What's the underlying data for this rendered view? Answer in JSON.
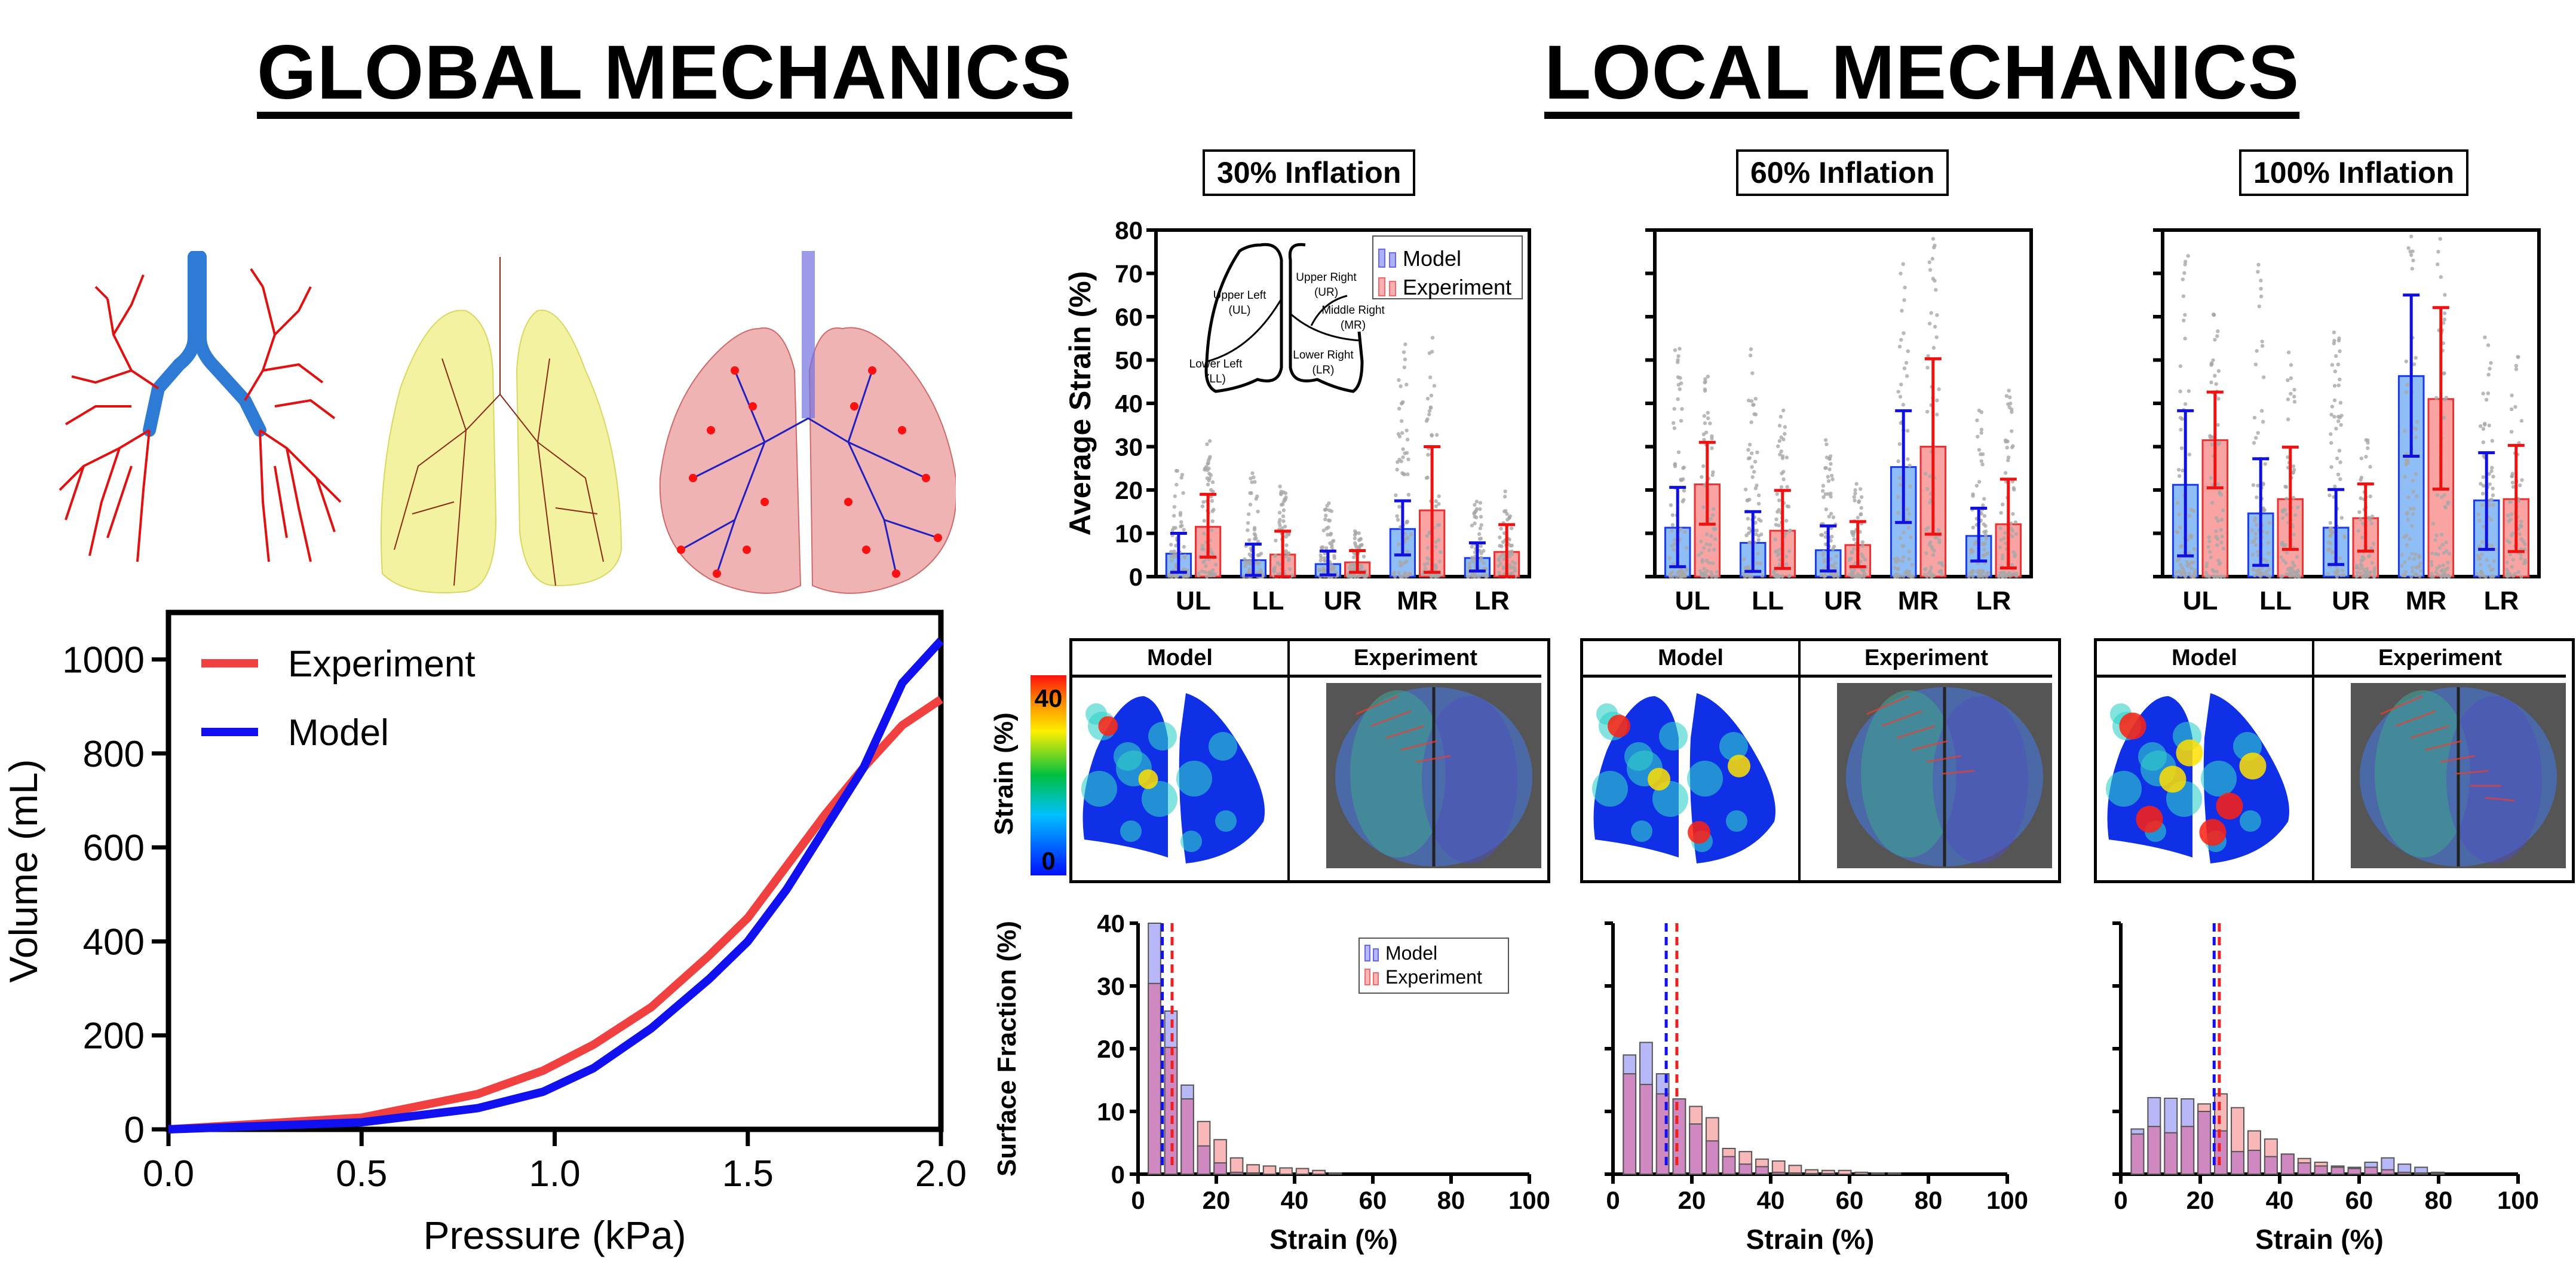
{
  "headers": {
    "global": "GLOBAL MECHANICS",
    "local": "LOCAL MECHANICS"
  },
  "lung_images": [
    {
      "name": "airway-tree-model",
      "description": "Blue trachea with red branching airway tree"
    },
    {
      "name": "yellow-lung-mesh",
      "description": "Translucent yellow lung lobes with brown airway tree"
    },
    {
      "name": "red-lung-mesh",
      "description": "Translucent red lung lobes with blue airway tree and red terminal nodes"
    }
  ],
  "colors": {
    "experiment": "#f04040",
    "model": "#1010f0",
    "model_bar_fill": "#8fbdf5",
    "exp_bar_fill": "#f9a3a3",
    "scatter": "#a8a8a8",
    "hist_model_fill": "#b8b8f8",
    "hist_exp_fill": "#f8b8b8",
    "hist_overlap": "#cf88c0"
  },
  "map_panels": {
    "model_label": "Model",
    "experiment_label": "Experiment",
    "colorbar_label": "Strain (%)",
    "colorbar_min": "0",
    "colorbar_max": "40"
  },
  "chart_data": [
    {
      "id": "pv-curve",
      "type": "line",
      "title": "",
      "xlabel": "Pressure (kPa)",
      "ylabel": "Volume (mL)",
      "xlim": [
        0,
        2.0
      ],
      "ylim": [
        0,
        1100
      ],
      "xticks": [
        0.0,
        0.5,
        1.0,
        1.5,
        2.0
      ],
      "xtick_labels": [
        "0.0",
        "0.5",
        "1.0",
        "1.5",
        "2.0"
      ],
      "yticks": [
        0,
        200,
        400,
        600,
        800,
        1000
      ],
      "ytick_labels": [
        "0",
        "200",
        "400",
        "600",
        "800",
        "1000"
      ],
      "grid": false,
      "legend": "top-left",
      "series": [
        {
          "name": "Experiment",
          "color": "#f04040",
          "x": [
            0,
            0.5,
            0.8,
            0.97,
            1.1,
            1.25,
            1.4,
            1.5,
            1.6,
            1.7,
            1.8,
            1.9,
            2.0
          ],
          "y": [
            0,
            25,
            75,
            125,
            180,
            260,
            370,
            450,
            560,
            670,
            770,
            860,
            915
          ]
        },
        {
          "name": "Model",
          "color": "#1010f0",
          "x": [
            0,
            0.5,
            0.8,
            0.97,
            1.1,
            1.25,
            1.4,
            1.5,
            1.6,
            1.7,
            1.8,
            1.9,
            2.0
          ],
          "y": [
            0,
            15,
            45,
            80,
            130,
            215,
            320,
            400,
            510,
            640,
            770,
            950,
            1040
          ]
        }
      ]
    },
    {
      "id": "bar-30",
      "type": "bar",
      "title": "30% Inflation",
      "ylabel": "Average Strain (%)",
      "ylim": [
        0,
        80
      ],
      "yticks": [
        0,
        10,
        20,
        30,
        40,
        50,
        60,
        70,
        80
      ],
      "categories": [
        "UL",
        "LL",
        "UR",
        "MR",
        "LR"
      ],
      "legend": "top-right",
      "inset": {
        "labels": [
          "Upper Left",
          "(UL)",
          "Lower Left",
          "(LL)",
          "Upper Right",
          "(UR)",
          "Middle Right",
          "(MR)",
          "Lower Right",
          "(LR)"
        ]
      },
      "series": [
        {
          "name": "Model",
          "values": [
            5.3,
            3.8,
            2.9,
            11.0,
            4.3
          ],
          "err_low": [
            1.0,
            0.3,
            0.4,
            5.0,
            1.3
          ],
          "err_high": [
            10.0,
            7.5,
            5.9,
            17.5,
            7.8
          ],
          "scatter_max": [
            27,
            24,
            17,
            54,
            18
          ]
        },
        {
          "name": "Experiment",
          "values": [
            11.5,
            5.1,
            3.3,
            15.3,
            5.7
          ],
          "err_low": [
            4.5,
            0.0,
            1.0,
            1.0,
            0.0
          ],
          "err_high": [
            19.0,
            10.5,
            6.0,
            30.0,
            12.0
          ],
          "scatter_max": [
            32,
            21,
            11,
            57,
            22
          ]
        }
      ]
    },
    {
      "id": "bar-60",
      "type": "bar",
      "title": "60% Inflation",
      "ylim": [
        0,
        80
      ],
      "yticks": [
        0,
        10,
        20,
        30,
        40,
        50,
        60,
        70,
        80
      ],
      "categories": [
        "UL",
        "LL",
        "UR",
        "MR",
        "LR"
      ],
      "series": [
        {
          "name": "Model",
          "values": [
            11.3,
            7.8,
            6.1,
            25.3,
            9.4
          ],
          "err_low": [
            2.3,
            1.2,
            1.3,
            12.5,
            3.6
          ],
          "err_high": [
            20.6,
            15.0,
            11.7,
            38.3,
            15.8
          ],
          "scatter_max": [
            54,
            53,
            32,
            73,
            39
          ]
        },
        {
          "name": "Experiment",
          "values": [
            21.3,
            10.6,
            7.3,
            30.0,
            12.1
          ],
          "err_low": [
            12.1,
            1.9,
            2.3,
            9.8,
            2.0
          ],
          "err_high": [
            31.0,
            19.9,
            12.7,
            50.3,
            22.5
          ],
          "scatter_max": [
            47,
            39,
            22,
            80,
            43
          ]
        }
      ]
    },
    {
      "id": "bar-100",
      "type": "bar",
      "title": "100% Inflation",
      "ylim": [
        0,
        80
      ],
      "yticks": [
        0,
        10,
        20,
        30,
        40,
        50,
        60,
        70,
        80
      ],
      "categories": [
        "UL",
        "LL",
        "UR",
        "MR",
        "LR"
      ],
      "series": [
        {
          "name": "Model",
          "values": [
            21.2,
            14.6,
            11.3,
            46.3,
            17.6
          ],
          "err_low": [
            4.8,
            2.6,
            2.8,
            27.8,
            6.3
          ],
          "err_high": [
            38.3,
            27.2,
            20.1,
            65.0,
            28.6
          ],
          "scatter_max": [
            76,
            72,
            60,
            80,
            63
          ]
        },
        {
          "name": "Experiment",
          "values": [
            31.5,
            17.9,
            13.5,
            41.0,
            17.9
          ],
          "err_low": [
            20.5,
            6.3,
            5.9,
            20.2,
            5.8
          ],
          "err_high": [
            42.6,
            29.9,
            21.4,
            62.1,
            30.3
          ],
          "scatter_max": [
            61,
            52,
            35,
            80,
            57
          ]
        }
      ]
    },
    {
      "id": "hist-30",
      "type": "bar",
      "subtype": "histogram",
      "xlabel": "Strain (%)",
      "ylabel": "Surface Fraction (%)",
      "xlim": [
        0,
        100
      ],
      "ylim": [
        0,
        40
      ],
      "xticks": [
        0,
        20,
        40,
        60,
        80,
        100
      ],
      "yticks": [
        0,
        10,
        20,
        30,
        40
      ],
      "bin_width": 4.2,
      "bin_centers": [
        4.2,
        8.4,
        12.6,
        16.8,
        21.0,
        25.2,
        29.4,
        33.6,
        37.8,
        42.0,
        46.2,
        50.4
      ],
      "legend": "top-right",
      "series": [
        {
          "name": "Model",
          "values": [
            40,
            26,
            14.2,
            4.5,
            1.8,
            0.3,
            0.2,
            0,
            0,
            0,
            0,
            0
          ],
          "mean": 6.2
        },
        {
          "name": "Experiment",
          "values": [
            30.4,
            20.2,
            12.0,
            8.4,
            5.5,
            2.6,
            1.5,
            1.3,
            1.0,
            0.9,
            0.6,
            0.2
          ],
          "mean": 8.7
        }
      ]
    },
    {
      "id": "hist-60",
      "type": "bar",
      "subtype": "histogram",
      "xlabel": "Strain (%)",
      "xlim": [
        0,
        100
      ],
      "ylim": [
        0,
        40
      ],
      "xticks": [
        0,
        20,
        40,
        60,
        80,
        100
      ],
      "yticks": [
        0,
        10,
        20,
        30,
        40
      ],
      "bin_width": 4.2,
      "bin_centers": [
        4.2,
        8.4,
        12.6,
        16.8,
        21.0,
        25.2,
        29.4,
        33.6,
        37.8,
        42.0,
        46.2,
        50.4,
        54.6,
        58.8,
        63.0,
        67.2,
        71.4
      ],
      "series": [
        {
          "name": "Model",
          "values": [
            19.0,
            21.0,
            16.0,
            12.0,
            8.0,
            5.3,
            2.8,
            1.6,
            1.2,
            0.3,
            0.2,
            0.1,
            0.1,
            0,
            0,
            0,
            0
          ],
          "mean": 13.5
        },
        {
          "name": "Experiment",
          "values": [
            16.0,
            14.3,
            12.8,
            12.0,
            10.8,
            9.0,
            4.1,
            3.6,
            2.4,
            2.1,
            1.4,
            0.7,
            0.6,
            0.6,
            0.3,
            0.2,
            0.2
          ],
          "mean": 16.2
        }
      ]
    },
    {
      "id": "hist-100",
      "type": "bar",
      "subtype": "histogram",
      "xlabel": "Strain (%)",
      "xlim": [
        0,
        100
      ],
      "ylim": [
        0,
        40
      ],
      "xticks": [
        0,
        20,
        40,
        60,
        80,
        100
      ],
      "yticks": [
        0,
        10,
        20,
        30,
        40
      ],
      "bin_width": 4.2,
      "bin_centers": [
        4.2,
        8.4,
        12.6,
        16.8,
        21.0,
        25.2,
        29.4,
        33.6,
        37.8,
        42.0,
        46.2,
        50.4,
        54.6,
        58.8,
        63.0,
        67.2,
        71.4,
        75.6,
        79.8
      ],
      "series": [
        {
          "name": "Model",
          "values": [
            7.2,
            12.2,
            12.1,
            12.0,
            10.0,
            6.9,
            3.6,
            3.8,
            2.8,
            3.2,
            1.8,
            1.3,
            1.1,
            1.1,
            1.9,
            2.6,
            1.6,
            1.1,
            0.2
          ],
          "mean": 23.5
        },
        {
          "name": "Experiment",
          "values": [
            6.4,
            7.6,
            6.6,
            7.6,
            11.2,
            12.8,
            10.6,
            6.9,
            5.6,
            3.2,
            2.5,
            1.9,
            1.3,
            0.9,
            1.1,
            0.7,
            0.3,
            0.2,
            0.3
          ],
          "mean": 24.8
        }
      ]
    }
  ]
}
